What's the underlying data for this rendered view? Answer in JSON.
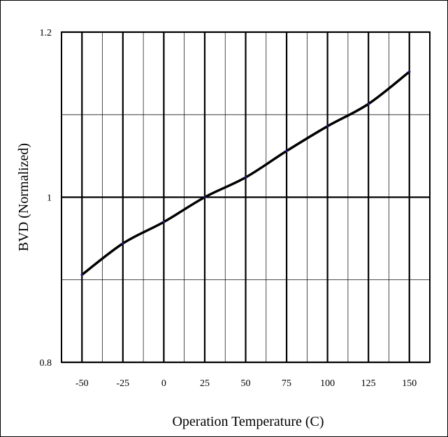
{
  "chart_data": {
    "type": "line",
    "xlabel": "Operation Temperature (C)",
    "ylabel": "BVD (Normalized)",
    "xlim": [
      -62.5,
      162.5
    ],
    "ylim": [
      0.8,
      1.2
    ],
    "x_ticks": [
      "-50",
      "-25",
      "0",
      "25",
      "50",
      "75",
      "100",
      "125",
      "150"
    ],
    "x_tick_values": [
      -50,
      -25,
      0,
      25,
      50,
      75,
      100,
      125,
      150
    ],
    "y_ticks": [
      "0.8",
      "1",
      "1.2"
    ],
    "y_tick_values": [
      0.8,
      1.0,
      1.2
    ],
    "y_minor_grid": [
      0.9,
      1.1
    ],
    "x_minor_grid": [
      -37.5,
      -12.5,
      12.5,
      37.5,
      62.5,
      87.5,
      112.5,
      137.5
    ],
    "grid": true,
    "line_color": "#000000",
    "marker_color": "#1a1a8c",
    "series": [
      {
        "x": [
          -50,
          -25,
          0,
          25,
          50,
          75,
          100,
          125,
          150
        ],
        "y": [
          0.906,
          0.944,
          0.97,
          1.0,
          1.024,
          1.056,
          1.086,
          1.113,
          1.152
        ]
      }
    ]
  }
}
